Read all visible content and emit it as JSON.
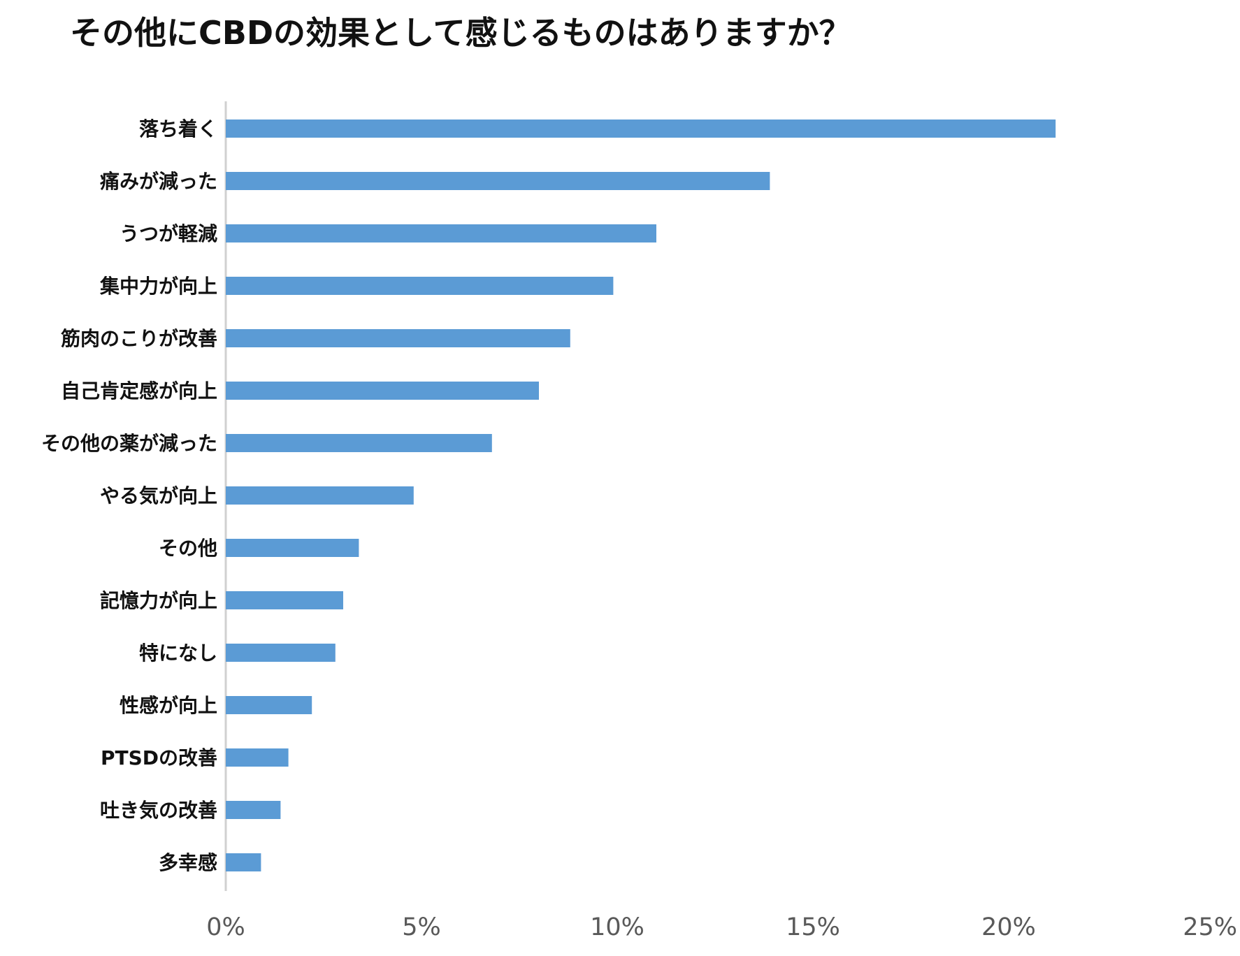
{
  "chart_data": {
    "type": "bar",
    "orientation": "horizontal",
    "title": "その他にCBDの効果として感じるものはありますか？",
    "xlabel": "",
    "ylabel": "",
    "categories": [
      "落ち着く",
      "痛みが減った",
      "うつが軽減",
      "集中力が向上",
      "筋肉のこりが改善",
      "自己肯定感が向上",
      "その他の薬が減った",
      "やる気が向上",
      "その他",
      "記憶力が向上",
      "特になし",
      "性感が向上",
      "PTSDの改善",
      "吐き気の改善",
      "多幸感"
    ],
    "values": [
      21.2,
      13.9,
      11.0,
      9.9,
      8.8,
      8.0,
      6.8,
      4.8,
      3.4,
      3.0,
      2.8,
      2.2,
      1.6,
      1.4,
      0.9
    ],
    "xlim": [
      0,
      25
    ],
    "x_ticks": [
      0,
      5,
      10,
      15,
      20,
      25
    ],
    "x_tick_labels": [
      "0%",
      "5%",
      "10%",
      "15%",
      "20%",
      "25%"
    ],
    "grid": false,
    "legend": "none",
    "bar_color": "#5b9bd5",
    "axis_color": "#d0d0d0"
  }
}
